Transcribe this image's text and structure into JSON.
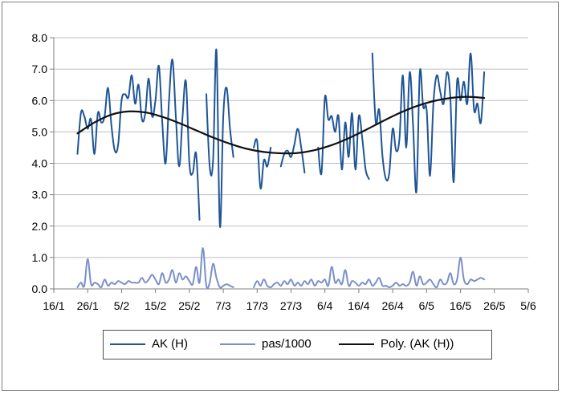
{
  "chart_data": {
    "type": "line",
    "title": "",
    "xlabel": "",
    "ylabel": "",
    "ylim": [
      0,
      8
    ],
    "yticks": [
      "0.0",
      "1.0",
      "2.0",
      "3.0",
      "4.0",
      "5.0",
      "6.0",
      "7.0",
      "8.0"
    ],
    "x_domain": [
      "2013-01-16",
      "2013-06-05"
    ],
    "xticks": [
      "16/1",
      "26/1",
      "5/2",
      "15/2",
      "25/2",
      "7/3",
      "17/3",
      "27/3",
      "6/4",
      "16/4",
      "26/4",
      "6/5",
      "16/5",
      "26/5",
      "5/6"
    ],
    "grid": "horizontal",
    "legend_position": "bottom",
    "series": [
      {
        "name": "AK (H)",
        "color": "#1f5596",
        "points": [
          [
            "2013-01-23",
            4.3
          ],
          [
            "2013-01-24",
            5.6
          ],
          [
            "2013-01-25",
            5.5
          ],
          [
            "2013-01-26",
            5.1
          ],
          [
            "2013-01-27",
            5.4
          ],
          [
            "2013-01-28",
            4.3
          ],
          [
            "2013-01-29",
            5.6
          ],
          [
            "2013-01-30",
            5.3
          ],
          [
            "2013-01-31",
            5.5
          ],
          [
            "2013-02-01",
            6.4
          ],
          [
            "2013-02-02",
            5.2
          ],
          [
            "2013-02-03",
            4.4
          ],
          [
            "2013-02-04",
            4.6
          ],
          [
            "2013-02-05",
            6.0
          ],
          [
            "2013-02-06",
            6.2
          ],
          [
            "2013-02-07",
            6.1
          ],
          [
            "2013-02-08",
            6.8
          ],
          [
            "2013-02-09",
            5.9
          ],
          [
            "2013-02-10",
            6.5
          ],
          [
            "2013-02-11",
            5.4
          ],
          [
            "2013-02-12",
            5.6
          ],
          [
            "2013-02-13",
            6.7
          ],
          [
            "2013-02-14",
            5.5
          ],
          [
            "2013-02-15",
            6.0
          ],
          [
            "2013-02-16",
            7.1
          ],
          [
            "2013-02-17",
            5.3
          ],
          [
            "2013-02-18",
            4.0
          ],
          [
            "2013-02-19",
            6.0
          ],
          [
            "2013-02-20",
            7.3
          ],
          [
            "2013-02-21",
            5.5
          ],
          [
            "2013-02-22",
            3.9
          ],
          [
            "2013-02-23",
            5.5
          ],
          [
            "2013-02-24",
            6.6
          ],
          [
            "2013-02-25",
            4.0
          ],
          [
            "2013-02-26",
            3.7
          ],
          [
            "2013-02-27",
            4.3
          ],
          [
            "2013-02-28",
            2.2
          ],
          null,
          [
            "2013-03-02",
            6.2
          ],
          [
            "2013-03-03",
            3.9
          ],
          [
            "2013-03-04",
            4.1
          ],
          [
            "2013-03-05",
            7.6
          ],
          [
            "2013-03-06",
            2.0
          ],
          [
            "2013-03-07",
            5.5
          ],
          [
            "2013-03-08",
            6.4
          ],
          [
            "2013-03-09",
            5.1
          ],
          [
            "2013-03-10",
            4.2
          ],
          null,
          [
            "2013-03-16",
            4.5
          ],
          [
            "2013-03-17",
            4.7
          ],
          [
            "2013-03-18",
            3.2
          ],
          [
            "2013-03-19",
            4.1
          ],
          [
            "2013-03-20",
            3.9
          ],
          [
            "2013-03-21",
            4.5
          ],
          null,
          [
            "2013-03-24",
            3.9
          ],
          [
            "2013-03-25",
            4.3
          ],
          [
            "2013-03-26",
            4.4
          ],
          [
            "2013-03-27",
            4.2
          ],
          [
            "2013-03-28",
            4.6
          ],
          [
            "2013-03-29",
            5.1
          ],
          [
            "2013-03-30",
            4.5
          ],
          [
            "2013-03-31",
            3.7
          ],
          null,
          [
            "2013-04-04",
            4.5
          ],
          [
            "2013-04-05",
            3.7
          ],
          [
            "2013-04-06",
            6.1
          ],
          [
            "2013-04-07",
            5.4
          ],
          [
            "2013-04-08",
            5.5
          ],
          [
            "2013-04-09",
            5.0
          ],
          [
            "2013-04-10",
            5.5
          ],
          [
            "2013-04-11",
            3.8
          ],
          [
            "2013-04-12",
            5.3
          ],
          [
            "2013-04-13",
            4.2
          ],
          [
            "2013-04-14",
            5.6
          ],
          [
            "2013-04-15",
            3.8
          ],
          [
            "2013-04-16",
            5.5
          ],
          [
            "2013-04-17",
            4.8
          ],
          [
            "2013-04-18",
            3.8
          ],
          [
            "2013-04-19",
            3.5
          ],
          null,
          [
            "2013-04-20",
            7.5
          ],
          [
            "2013-04-21",
            5.3
          ],
          [
            "2013-04-22",
            5.7
          ],
          [
            "2013-04-23",
            4.2
          ],
          [
            "2013-04-24",
            3.5
          ],
          [
            "2013-04-25",
            3.7
          ],
          [
            "2013-04-26",
            5.1
          ],
          [
            "2013-04-27",
            4.4
          ],
          [
            "2013-04-28",
            4.8
          ],
          [
            "2013-04-29",
            6.8
          ],
          [
            "2013-04-30",
            4.5
          ],
          [
            "2013-05-01",
            6.9
          ],
          [
            "2013-05-02",
            5.2
          ],
          [
            "2013-05-03",
            3.1
          ],
          [
            "2013-05-04",
            6.9
          ],
          [
            "2013-05-05",
            5.8
          ],
          [
            "2013-05-06",
            5.7
          ],
          [
            "2013-05-07",
            3.6
          ],
          [
            "2013-05-08",
            5.9
          ],
          [
            "2013-05-09",
            6.8
          ],
          [
            "2013-05-10",
            6.3
          ],
          [
            "2013-05-11",
            5.9
          ],
          [
            "2013-05-12",
            6.9
          ],
          [
            "2013-05-13",
            6.1
          ],
          [
            "2013-05-14",
            3.4
          ],
          [
            "2013-05-15",
            6.6
          ],
          [
            "2013-05-16",
            6.0
          ],
          [
            "2013-05-17",
            6.6
          ],
          [
            "2013-05-18",
            5.9
          ],
          [
            "2013-05-19",
            7.5
          ],
          [
            "2013-05-20",
            5.7
          ],
          [
            "2013-05-21",
            5.9
          ],
          [
            "2013-05-22",
            5.3
          ],
          [
            "2013-05-23",
            6.9
          ]
        ]
      },
      {
        "name": "pas/1000",
        "color": "#7b8fc8",
        "points": [
          [
            "2013-01-23",
            0.05
          ],
          [
            "2013-01-24",
            0.2
          ],
          [
            "2013-01-25",
            0.1
          ],
          [
            "2013-01-26",
            0.95
          ],
          [
            "2013-01-27",
            0.15
          ],
          [
            "2013-01-28",
            0.2
          ],
          [
            "2013-01-29",
            0.15
          ],
          [
            "2013-01-30",
            0.05
          ],
          [
            "2013-01-31",
            0.3
          ],
          [
            "2013-02-01",
            0.1
          ],
          [
            "2013-02-02",
            0.2
          ],
          [
            "2013-02-03",
            0.15
          ],
          [
            "2013-02-04",
            0.25
          ],
          [
            "2013-02-05",
            0.2
          ],
          [
            "2013-02-06",
            0.15
          ],
          [
            "2013-02-07",
            0.25
          ],
          [
            "2013-02-08",
            0.2
          ],
          [
            "2013-02-09",
            0.2
          ],
          [
            "2013-02-10",
            0.2
          ],
          [
            "2013-02-11",
            0.35
          ],
          [
            "2013-02-12",
            0.2
          ],
          [
            "2013-02-13",
            0.3
          ],
          [
            "2013-02-14",
            0.45
          ],
          [
            "2013-02-15",
            0.3
          ],
          [
            "2013-02-16",
            0.15
          ],
          [
            "2013-02-17",
            0.5
          ],
          [
            "2013-02-18",
            0.2
          ],
          [
            "2013-02-19",
            0.3
          ],
          [
            "2013-02-20",
            0.6
          ],
          [
            "2013-02-21",
            0.2
          ],
          [
            "2013-02-22",
            0.5
          ],
          [
            "2013-02-23",
            0.3
          ],
          [
            "2013-02-24",
            0.4
          ],
          [
            "2013-02-25",
            0.25
          ],
          [
            "2013-02-26",
            0.15
          ],
          [
            "2013-02-27",
            0.7
          ],
          [
            "2013-02-28",
            0.2
          ],
          [
            "2013-03-01",
            1.3
          ],
          [
            "2013-03-02",
            0.1
          ],
          [
            "2013-03-03",
            0.2
          ],
          [
            "2013-03-04",
            0.8
          ],
          [
            "2013-03-05",
            0.35
          ],
          [
            "2013-03-06",
            0.05
          ],
          [
            "2013-03-07",
            0.1
          ],
          [
            "2013-03-08",
            0.15
          ],
          [
            "2013-03-09",
            0.1
          ],
          [
            "2013-03-10",
            0.05
          ],
          null,
          [
            "2013-03-16",
            0.05
          ],
          [
            "2013-03-17",
            0.25
          ],
          [
            "2013-03-18",
            0.1
          ],
          [
            "2013-03-19",
            0.3
          ],
          [
            "2013-03-20",
            0.1
          ],
          [
            "2013-03-21",
            0.05
          ],
          [
            "2013-03-22",
            0.15
          ],
          [
            "2013-03-23",
            0.2
          ],
          [
            "2013-03-24",
            0.1
          ],
          [
            "2013-03-25",
            0.25
          ],
          [
            "2013-03-26",
            0.15
          ],
          [
            "2013-03-27",
            0.3
          ],
          [
            "2013-03-28",
            0.1
          ],
          [
            "2013-03-29",
            0.2
          ],
          [
            "2013-03-30",
            0.1
          ],
          [
            "2013-03-31",
            0.25
          ],
          [
            "2013-04-01",
            0.15
          ],
          [
            "2013-04-02",
            0.3
          ],
          [
            "2013-04-03",
            0.1
          ],
          [
            "2013-04-04",
            0.25
          ],
          [
            "2013-04-05",
            0.2
          ],
          [
            "2013-04-06",
            0.3
          ],
          [
            "2013-04-07",
            0.1
          ],
          [
            "2013-04-08",
            0.7
          ],
          [
            "2013-04-09",
            0.2
          ],
          [
            "2013-04-10",
            0.3
          ],
          [
            "2013-04-11",
            0.15
          ],
          [
            "2013-04-12",
            0.6
          ],
          [
            "2013-04-13",
            0.1
          ],
          [
            "2013-04-14",
            0.25
          ],
          [
            "2013-04-15",
            0.2
          ],
          [
            "2013-04-16",
            0.1
          ],
          [
            "2013-04-17",
            0.2
          ],
          [
            "2013-04-18",
            0.15
          ],
          [
            "2013-04-19",
            0.3
          ],
          [
            "2013-04-20",
            0.1
          ],
          [
            "2013-04-21",
            0.2
          ],
          [
            "2013-04-22",
            0.35
          ],
          [
            "2013-04-23",
            0.1
          ],
          [
            "2013-04-24",
            0.1
          ],
          [
            "2013-04-25",
            0.05
          ],
          [
            "2013-04-26",
            0.1
          ],
          [
            "2013-04-27",
            0.2
          ],
          [
            "2013-04-28",
            0.1
          ],
          [
            "2013-04-29",
            0.15
          ],
          [
            "2013-04-30",
            0.1
          ],
          [
            "2013-05-01",
            0.2
          ],
          [
            "2013-05-02",
            0.55
          ],
          [
            "2013-05-03",
            0.1
          ],
          [
            "2013-05-04",
            0.4
          ],
          [
            "2013-05-05",
            0.15
          ],
          [
            "2013-05-06",
            0.2
          ],
          [
            "2013-05-07",
            0.3
          ],
          [
            "2013-05-08",
            0.15
          ],
          [
            "2013-05-09",
            0.05
          ],
          [
            "2013-05-10",
            0.3
          ],
          [
            "2013-05-11",
            0.15
          ],
          [
            "2013-05-12",
            0.2
          ],
          [
            "2013-05-13",
            0.5
          ],
          [
            "2013-05-14",
            0.15
          ],
          [
            "2013-05-15",
            0.3
          ],
          [
            "2013-05-16",
            1.0
          ],
          [
            "2013-05-17",
            0.3
          ],
          [
            "2013-05-18",
            0.15
          ],
          [
            "2013-05-19",
            0.3
          ],
          [
            "2013-05-20",
            0.25
          ],
          [
            "2013-05-21",
            0.3
          ],
          [
            "2013-05-22",
            0.35
          ],
          [
            "2013-05-23",
            0.3
          ]
        ]
      },
      {
        "name": "Poly. (AK (H))",
        "color": "#111111",
        "points": [
          [
            "2013-01-23",
            4.95
          ],
          [
            "2013-01-28",
            5.3
          ],
          [
            "2013-02-02",
            5.55
          ],
          [
            "2013-02-07",
            5.65
          ],
          [
            "2013-02-12",
            5.62
          ],
          [
            "2013-02-17",
            5.48
          ],
          [
            "2013-02-22",
            5.28
          ],
          [
            "2013-02-27",
            5.05
          ],
          [
            "2013-03-04",
            4.82
          ],
          [
            "2013-03-09",
            4.62
          ],
          [
            "2013-03-14",
            4.46
          ],
          [
            "2013-03-19",
            4.36
          ],
          [
            "2013-03-24",
            4.32
          ],
          [
            "2013-03-29",
            4.33
          ],
          [
            "2013-04-03",
            4.42
          ],
          [
            "2013-04-08",
            4.58
          ],
          [
            "2013-04-13",
            4.8
          ],
          [
            "2013-04-18",
            5.06
          ],
          [
            "2013-04-23",
            5.34
          ],
          [
            "2013-04-28",
            5.6
          ],
          [
            "2013-05-03",
            5.82
          ],
          [
            "2013-05-08",
            5.98
          ],
          [
            "2013-05-13",
            6.08
          ],
          [
            "2013-05-18",
            6.12
          ],
          [
            "2013-05-23",
            6.08
          ]
        ]
      }
    ]
  }
}
